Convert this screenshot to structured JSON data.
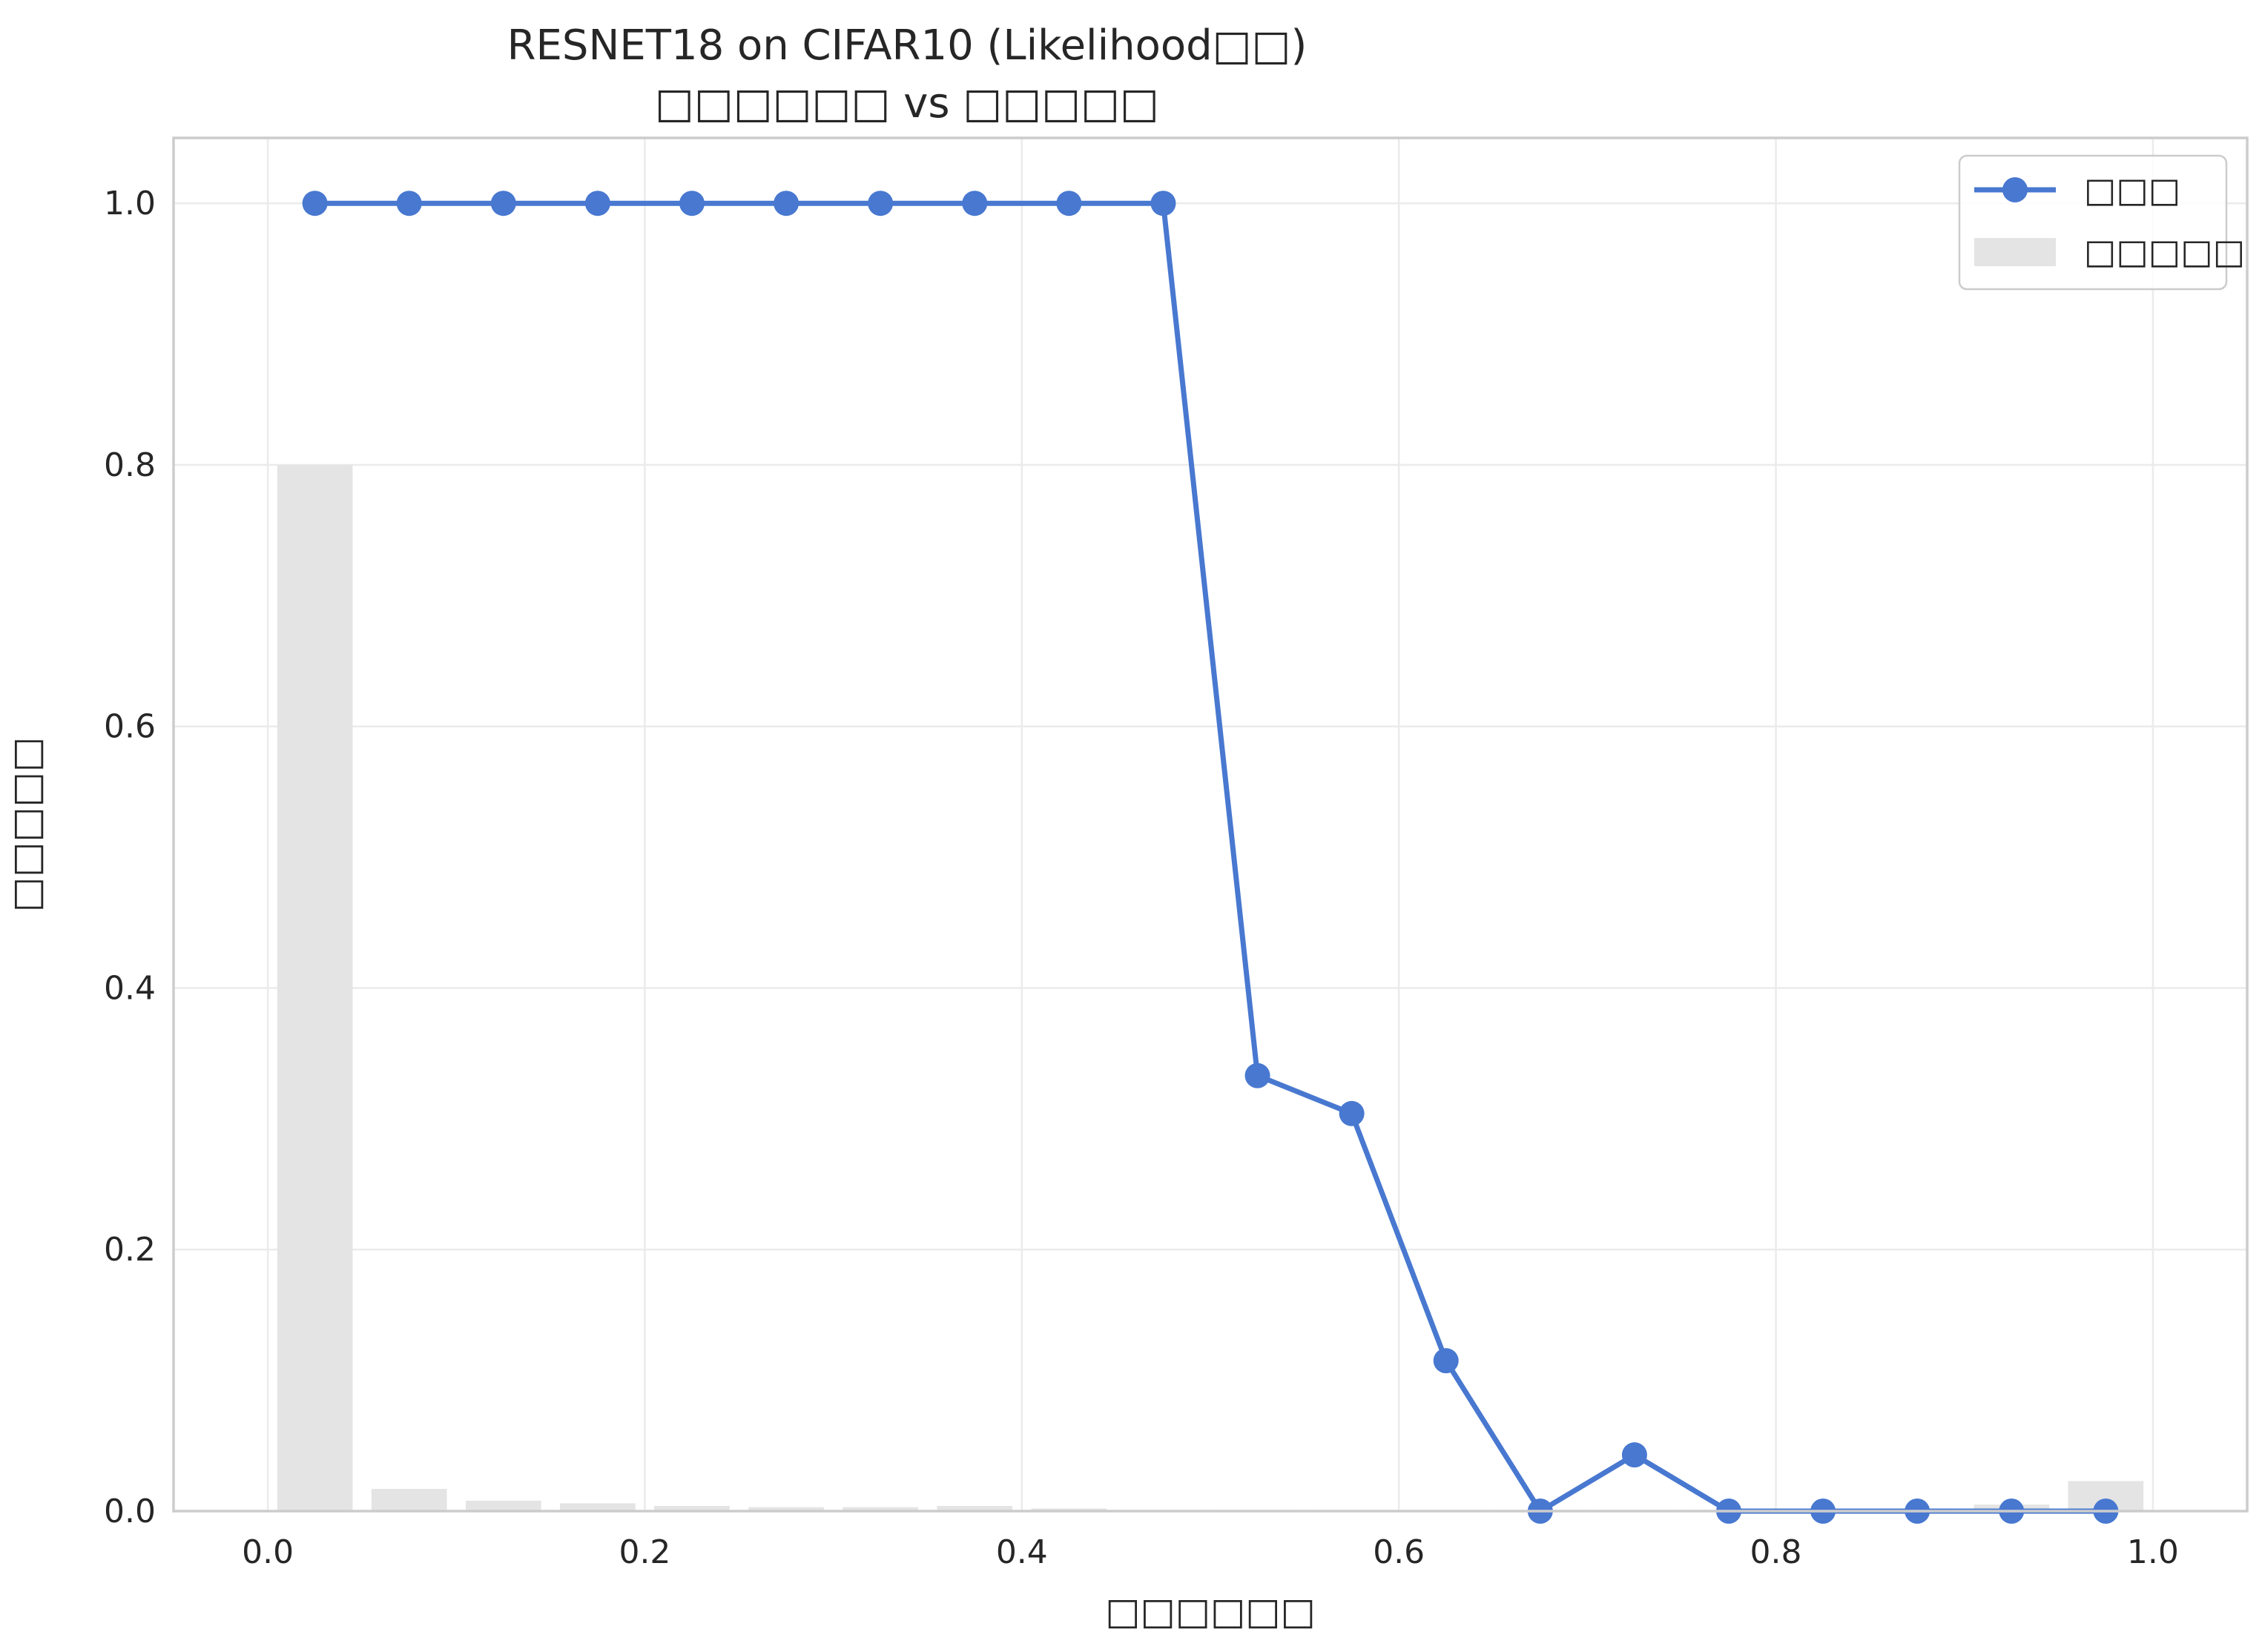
{
  "chart_data": {
    "type": "line+bar",
    "title_line1": "RESNET18 on CIFAR10 (Likelihood□□)",
    "title_line2": "□□□□□□ vs □□□□□",
    "xlabel": "□□□□□□",
    "ylabel": "□□□□□",
    "xlim": [
      -0.05,
      1.05
    ],
    "ylim": [
      0.0,
      1.05
    ],
    "xticks": [
      "0.0",
      "0.2",
      "0.4",
      "0.6",
      "0.8",
      "1.0"
    ],
    "yticks": [
      "0.0",
      "0.2",
      "0.4",
      "0.6",
      "0.8",
      "1.0"
    ],
    "grid": true,
    "legend_position": "top-right",
    "colors": {
      "line": "#4878d0",
      "bar": "#e4e4e4"
    },
    "series": [
      {
        "name": "□□□",
        "type": "line",
        "marker": "circle",
        "x": [
          0.025,
          0.075,
          0.125,
          0.175,
          0.225,
          0.275,
          0.325,
          0.375,
          0.425,
          0.475,
          0.525,
          0.575,
          0.625,
          0.675,
          0.725,
          0.775,
          0.825,
          0.875,
          0.925,
          0.975
        ],
        "y": [
          1.0,
          1.0,
          1.0,
          1.0,
          1.0,
          1.0,
          1.0,
          1.0,
          1.0,
          1.0,
          0.333,
          0.304,
          0.115,
          0.0,
          0.043,
          0.0,
          0.0,
          0.0,
          0.0,
          0.0
        ]
      },
      {
        "name": "□□□□□",
        "type": "bar",
        "x": [
          0.025,
          0.075,
          0.125,
          0.175,
          0.225,
          0.275,
          0.325,
          0.375,
          0.425,
          0.475,
          0.525,
          0.575,
          0.625,
          0.675,
          0.725,
          0.775,
          0.825,
          0.875,
          0.925,
          0.975
        ],
        "width": 0.04,
        "values": [
          0.8,
          0.017,
          0.008,
          0.006,
          0.004,
          0.003,
          0.003,
          0.004,
          0.002,
          0.001,
          0.001,
          0.001,
          0.001,
          0.001,
          0.001,
          0.001,
          0.001,
          0.002,
          0.005,
          0.023
        ]
      }
    ]
  }
}
